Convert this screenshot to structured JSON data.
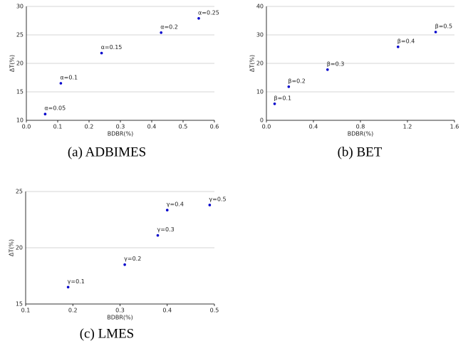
{
  "chart_data": [
    {
      "type": "scatter",
      "caption": "(a) ADBIMES",
      "x_label": "BDBR(%)",
      "y_label": "ΔT(%)",
      "color": "#0000cc",
      "grid": true,
      "x": [
        0.06,
        0.11,
        0.24,
        0.43,
        0.55
      ],
      "values": [
        11.1,
        16.5,
        21.8,
        25.4,
        27.9
      ],
      "labels": [
        "α=0.05",
        "α=0.1",
        "α=0.15",
        "α=0.2",
        "α=0.25"
      ],
      "xlim": [
        0,
        0.6
      ],
      "xticks": [
        {
          "value": 0,
          "label": "0.0"
        },
        0.1,
        0.2,
        0.3,
        0.4,
        0.5,
        0.6
      ],
      "ylim": [
        10,
        30
      ],
      "yticks": [
        10,
        15,
        20,
        25,
        30
      ]
    },
    {
      "type": "scatter",
      "caption": "(b) BET",
      "x_label": "BDBR(%)",
      "y_label": "ΔT(%)",
      "color": "#0000cc",
      "grid": true,
      "x": [
        0.07,
        0.19,
        0.52,
        1.12,
        1.44
      ],
      "values": [
        5.8,
        11.8,
        17.8,
        25.8,
        31
      ],
      "labels": [
        "β=0.1",
        "β=0.2",
        "β=0.3",
        "β=0.4",
        "β=0.5"
      ],
      "xlim": [
        0,
        1.6
      ],
      "xticks": [
        {
          "value": 0,
          "label": "0.0"
        },
        0.4,
        0.8,
        1.2,
        1.6
      ],
      "ylim": [
        0,
        40
      ],
      "yticks": [
        0,
        10,
        20,
        30,
        40
      ]
    },
    {
      "type": "scatter",
      "caption": "(c) LMES",
      "x_label": "BDBR(%)",
      "y_label": "ΔT(%)",
      "color": "#0000cc",
      "grid": true,
      "x": [
        0.19,
        0.31,
        0.38,
        0.4,
        0.49
      ],
      "values": [
        16.5,
        18.5,
        21.1,
        23.35,
        23.8
      ],
      "labels": [
        "γ=0.1",
        "γ=0.2",
        "γ=0.3",
        "γ=0.4",
        "γ=0.5"
      ],
      "xlim": [
        0.1,
        0.5
      ],
      "xticks": [
        0.1,
        0.2,
        0.3,
        0.4,
        0.5
      ],
      "ylim": [
        15,
        25
      ],
      "yticks": [
        15,
        20,
        25
      ]
    }
  ]
}
